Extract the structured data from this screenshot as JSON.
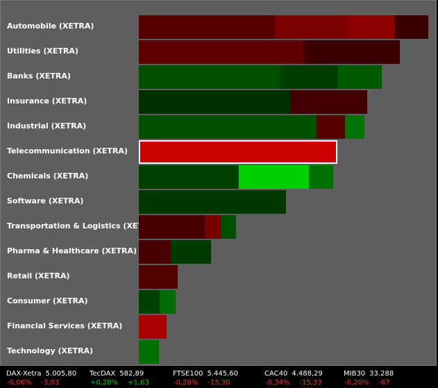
{
  "colors": {
    "panel_bg": "#5e5e5e",
    "selected_border": "#ffffff",
    "positive_text": "#00d000",
    "negative_text": "#ff3030"
  },
  "sectors": [
    {
      "label": "Automobile (XETRA)",
      "segments": [
        {
          "w": 197,
          "color": "#560000"
        },
        {
          "w": 104,
          "color": "#7c0000"
        },
        {
          "w": 68,
          "color": "#8c0000"
        },
        {
          "w": 48,
          "color": "#3a0000"
        }
      ]
    },
    {
      "label": "Utilities (XETRA)",
      "segments": [
        {
          "w": 238,
          "color": "#5e0000"
        },
        {
          "w": 138,
          "color": "#3a0000"
        }
      ]
    },
    {
      "label": "Banks (XETRA)",
      "segments": [
        {
          "w": 203,
          "color": "#005000"
        },
        {
          "w": 84,
          "color": "#003e00"
        },
        {
          "w": 63,
          "color": "#005a00"
        }
      ]
    },
    {
      "label": "Insurance (XETRA)",
      "segments": [
        {
          "w": 218,
          "color": "#003000"
        },
        {
          "w": 111,
          "color": "#420000"
        }
      ]
    },
    {
      "label": "Industrial (XETRA)",
      "segments": [
        {
          "w": 256,
          "color": "#005000"
        },
        {
          "w": 41,
          "color": "#560000"
        },
        {
          "w": 28,
          "color": "#007400"
        }
      ]
    },
    {
      "label": "Telecommunication (XETRA)",
      "selected": true,
      "segments": [
        {
          "w": 286,
          "color": "#cc0000"
        }
      ]
    },
    {
      "label": "Chemicals (XETRA)",
      "segments": [
        {
          "w": 144,
          "color": "#004000"
        },
        {
          "w": 101,
          "color": "#00d000"
        },
        {
          "w": 35,
          "color": "#007000"
        }
      ]
    },
    {
      "label": "Software (XETRA)",
      "segments": [
        {
          "w": 212,
          "color": "#003800"
        }
      ]
    },
    {
      "label": "Transportation & Logistics (XETR.",
      "segments": [
        {
          "w": 95,
          "color": "#480000"
        },
        {
          "w": 23,
          "color": "#760000"
        },
        {
          "w": 22,
          "color": "#005000"
        }
      ]
    },
    {
      "label": "Pharma & Healthcare (XETRA)",
      "segments": [
        {
          "w": 46,
          "color": "#4a0000"
        },
        {
          "w": 58,
          "color": "#003c00"
        }
      ]
    },
    {
      "label": "Retail (XETRA)",
      "segments": [
        {
          "w": 56,
          "color": "#520000"
        }
      ]
    },
    {
      "label": "Consumer (XETRA)",
      "segments": [
        {
          "w": 30,
          "color": "#004000"
        },
        {
          "w": 23,
          "color": "#006c00"
        }
      ]
    },
    {
      "label": "Financial Services (XETRA)",
      "segments": [
        {
          "w": 40,
          "color": "#aa0000"
        }
      ]
    },
    {
      "label": "Technology (XETRA)",
      "segments": [
        {
          "w": 29,
          "color": "#007000"
        }
      ]
    }
  ],
  "ticker": [
    {
      "name": "DAX-Xetra",
      "value": "5.005,80",
      "pct": "-0,06%",
      "chg": "-3,03",
      "dir": "neg"
    },
    {
      "name": "TecDAX",
      "value": "582,89",
      "pct": "+0,28%",
      "chg": "+1,63",
      "dir": "pos"
    },
    {
      "name": "FTSE100",
      "value": "5.445,60",
      "pct": "-0,28%",
      "chg": "-15,30",
      "dir": "neg"
    },
    {
      "name": "CAC40",
      "value": "4.488,29",
      "pct": "-0,34%",
      "chg": "-15,33",
      "dir": "neg"
    },
    {
      "name": "MIB30",
      "value": "33.288",
      "pct": "-0,20%",
      "chg": "-67",
      "dir": "neg"
    }
  ]
}
